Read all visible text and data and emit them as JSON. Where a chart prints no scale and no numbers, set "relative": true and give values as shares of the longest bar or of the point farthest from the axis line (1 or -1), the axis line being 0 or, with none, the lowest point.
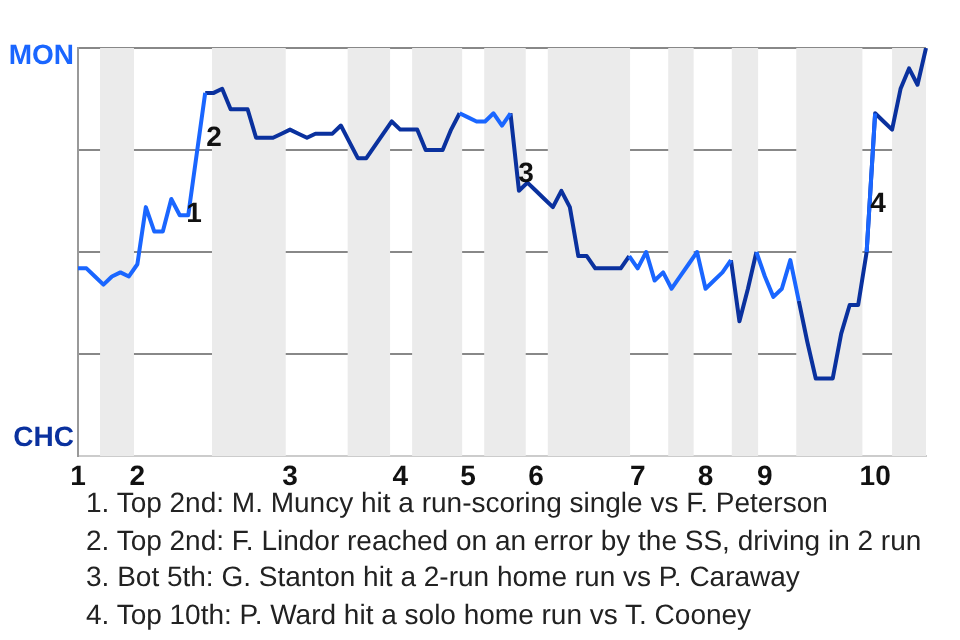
{
  "chart_data": {
    "type": "line",
    "relative": true,
    "categories": [
      "1",
      null,
      null,
      null,
      null,
      null,
      null,
      "2",
      null,
      null,
      null,
      null,
      null,
      null,
      null,
      null,
      null,
      null,
      null,
      null,
      null,
      null,
      null,
      null,
      null,
      "3",
      null,
      null,
      null,
      null,
      null,
      null,
      null,
      null,
      null,
      null,
      null,
      null,
      "4",
      null,
      null,
      null,
      null,
      null,
      null,
      null,
      "5",
      null,
      null,
      null,
      null,
      null,
      null,
      null,
      "6",
      null,
      null,
      null,
      null,
      null,
      null,
      null,
      null,
      null,
      null,
      null,
      "7",
      null,
      null,
      null,
      null,
      null,
      null,
      null,
      "8",
      null,
      null,
      null,
      null,
      null,
      null,
      "9",
      null,
      null,
      null,
      null,
      null,
      null,
      null,
      null,
      null,
      null,
      null,
      null,
      "10",
      null,
      null,
      null,
      null,
      null,
      null
    ],
    "grid": "y",
    "legend": false,
    "marker": "none",
    "line_style": "solid",
    "series": [
      {
        "color": "#1a66ff",
        "values": [
          0.46,
          0.46,
          0.44,
          0.42,
          0.44,
          0.45,
          0.44,
          0.47,
          0.61,
          0.55,
          0.55,
          0.63,
          0.59,
          0.59,
          0.74,
          0.89,
          null,
          null,
          null,
          null,
          null,
          null,
          null,
          null,
          null,
          null,
          null,
          null,
          null,
          null,
          null,
          null,
          null,
          null,
          null,
          null,
          null,
          null,
          null,
          null,
          null,
          null,
          null,
          null,
          null,
          0.84,
          0.83,
          0.82,
          0.82,
          0.84,
          0.81,
          0.84,
          null,
          null,
          null,
          null,
          null,
          null,
          null,
          null,
          null,
          null,
          null,
          null,
          null,
          0.49,
          0.46,
          0.5,
          0.43,
          0.45,
          0.41,
          0.44,
          0.47,
          0.5,
          0.41,
          0.43,
          0.45,
          0.48,
          null,
          null,
          0.5,
          0.44,
          0.39,
          0.41,
          0.48,
          0.38,
          null,
          null,
          null,
          null,
          null,
          null,
          null,
          0.5,
          0.84,
          null,
          null,
          null,
          null,
          null,
          null
        ]
      },
      {
        "color": "#0a319e",
        "values": [
          null,
          null,
          null,
          null,
          null,
          null,
          null,
          null,
          null,
          null,
          null,
          null,
          null,
          null,
          null,
          0.89,
          0.89,
          0.9,
          0.85,
          0.85,
          0.85,
          0.78,
          0.78,
          0.78,
          0.79,
          0.8,
          0.79,
          0.78,
          0.79,
          0.79,
          0.79,
          0.81,
          0.77,
          0.73,
          0.73,
          0.76,
          0.79,
          0.82,
          0.8,
          0.8,
          0.8,
          0.75,
          0.75,
          0.75,
          0.8,
          0.84,
          null,
          null,
          null,
          null,
          null,
          0.84,
          0.65,
          0.67,
          0.65,
          0.63,
          0.61,
          0.65,
          0.61,
          0.49,
          0.49,
          0.46,
          0.46,
          0.46,
          0.46,
          0.49,
          null,
          null,
          null,
          null,
          null,
          null,
          null,
          null,
          null,
          null,
          null,
          0.48,
          0.33,
          0.41,
          0.5,
          null,
          null,
          null,
          null,
          0.38,
          0.28,
          0.19,
          0.19,
          0.19,
          0.3,
          0.37,
          0.37,
          0.5,
          0.84,
          0.82,
          0.8,
          0.9,
          0.95,
          0.91,
          1
        ]
      }
    ],
    "annotations": [
      "MON",
      "CHC",
      "1",
      "2",
      "3",
      "4",
      "1. Top 2nd: M. Muncy hit a run-scoring single vs F. Peterson",
      "2. Top 2nd: F. Lindor reached on an error by the SS, driving in 2 run",
      "3. Bot 5th: G. Stanton hit a 2-run home run vs P. Caraway",
      "4. Top 10th: P. Ward hit a solo home run vs T. Cooney"
    ]
  }
}
